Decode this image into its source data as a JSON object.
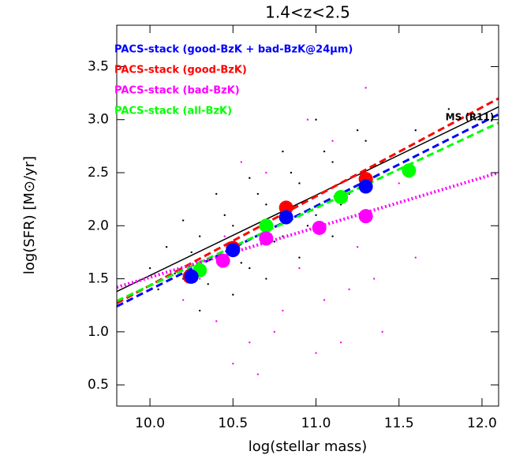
{
  "chart_data": {
    "type": "scatter",
    "title": "1.4<z<2.5",
    "x_label": "log(stellar mass)",
    "y_label": "log(SFR) [M⊙/yr]",
    "xlim": [
      9.8,
      12.1
    ],
    "ylim": [
      0.3,
      3.89
    ],
    "xticks": [
      {
        "value": 10,
        "label": "10.0"
      },
      10.5,
      {
        "value": 11,
        "label": "11.0"
      },
      11.5,
      {
        "value": 12,
        "label": "12.0"
      }
    ],
    "yticks": [
      0.5,
      {
        "value": 1,
        "label": "1.0"
      },
      1.5,
      {
        "value": 2,
        "label": "2.0"
      },
      2.5,
      {
        "value": 3,
        "label": "3.0"
      },
      3.5
    ],
    "grid": false,
    "legend": "upper left",
    "annotations": [
      {
        "text": "MS (R11)",
        "x": 11.78,
        "y": 3.02
      }
    ],
    "series": [
      {
        "name": "PACS-stack (good-BzK + bad-BzK@24μm)",
        "color": "#0000ff",
        "marker": "circle",
        "x": [
          10.25,
          10.5,
          10.82,
          11.3
        ],
        "values": [
          1.52,
          1.77,
          2.08,
          2.37
        ]
      },
      {
        "name": "PACS-stack (good-BzK)",
        "color": "#ff0000",
        "marker": "circle",
        "x": [
          10.24,
          10.5,
          10.82,
          11.3
        ],
        "values": [
          1.52,
          1.79,
          2.17,
          2.44
        ]
      },
      {
        "name": "PACS-stack (bad-BzK)",
        "color": "#ff00ff",
        "marker": "circle",
        "x": [
          10.44,
          10.7,
          11.02,
          11.3
        ],
        "values": [
          1.67,
          1.88,
          1.98,
          2.09
        ]
      },
      {
        "name": "PACS-stack (all-BzK)",
        "color": "#00ff00",
        "marker": "circle",
        "x": [
          10.3,
          10.7,
          11.15,
          11.56
        ],
        "values": [
          1.58,
          2.0,
          2.27,
          2.52
        ]
      },
      {
        "color": "#000000",
        "marker": "dot",
        "x": [
          10.0,
          10.1,
          10.2,
          10.3,
          10.4,
          10.5,
          10.6,
          10.7,
          10.8,
          10.9,
          11.0,
          11.1,
          11.2,
          11.3,
          10.05,
          10.15,
          10.25,
          10.35,
          10.45,
          10.55,
          10.65,
          10.75,
          10.85,
          10.95,
          11.05,
          11.15,
          11.25,
          11.4,
          11.6,
          11.8,
          10.3,
          10.5,
          10.7,
          10.9,
          11.1,
          10.2,
          10.4,
          10.6,
          10.8,
          11.0
        ],
        "values": [
          1.6,
          1.8,
          1.5,
          1.9,
          1.7,
          2.0,
          1.6,
          2.2,
          1.9,
          2.4,
          2.1,
          2.6,
          2.3,
          2.8,
          1.4,
          1.55,
          1.75,
          1.45,
          2.1,
          1.65,
          2.3,
          1.85,
          2.5,
          2.0,
          2.7,
          2.2,
          2.9,
          2.6,
          2.9,
          3.1,
          1.2,
          1.35,
          1.5,
          1.7,
          1.9,
          2.05,
          2.3,
          2.45,
          2.7,
          3.0
        ]
      },
      {
        "color": "#ff00ff",
        "marker": "dot",
        "x": [
          10.2,
          10.4,
          10.6,
          10.8,
          11.0,
          11.2,
          11.4,
          11.6,
          10.3,
          10.5,
          10.7,
          10.9,
          11.1,
          11.3,
          10.45,
          10.65,
          10.85,
          11.05,
          11.25,
          11.5,
          10.55,
          10.75,
          10.95,
          11.15,
          11.35
        ],
        "values": [
          1.3,
          1.1,
          0.9,
          1.2,
          0.8,
          1.4,
          1.0,
          1.7,
          1.5,
          0.7,
          2.5,
          1.6,
          2.8,
          3.3,
          1.9,
          0.6,
          2.1,
          1.3,
          1.8,
          2.4,
          2.6,
          1.0,
          3.0,
          0.9,
          1.5
        ]
      },
      {
        "color": "#000000",
        "marker": "line",
        "dash": "solid",
        "x": [
          9.8,
          12.1
        ],
        "values": [
          1.38,
          3.12
        ]
      },
      {
        "color": "#ff0000",
        "marker": "line",
        "dash": "dashed",
        "x": [
          9.8,
          12.1
        ],
        "values": [
          1.27,
          3.2
        ]
      },
      {
        "color": "#0000ff",
        "marker": "line",
        "dash": "dashed",
        "x": [
          9.8,
          12.1
        ],
        "values": [
          1.24,
          3.05
        ]
      },
      {
        "color": "#00ff00",
        "marker": "line",
        "dash": "dashed",
        "x": [
          9.8,
          12.1
        ],
        "values": [
          1.29,
          2.97
        ]
      },
      {
        "color": "#ff00ff",
        "marker": "line",
        "dash": "dotted",
        "x": [
          9.8,
          12.1
        ],
        "values": [
          1.42,
          2.5
        ]
      }
    ]
  }
}
